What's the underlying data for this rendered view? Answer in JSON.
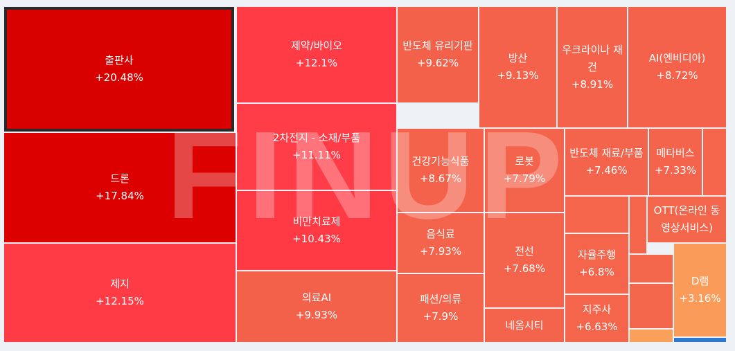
{
  "chart_data": {
    "type": "treemap",
    "watermark": "FINUP",
    "categories": [
      "출판사",
      "드론",
      "제지",
      "제약/바이오",
      "2차전지 - 소재/부품",
      "비만치료제",
      "의료AI",
      "반도체 유리기판",
      "방산",
      "우크라이나 재건",
      "AI(엔비디아)",
      "건강기능식품",
      "로봇",
      "반도체 재료/부품",
      "메타버스",
      "음식료",
      "패션/의류",
      "전선",
      "네옴시티",
      "자율주행",
      "지주사",
      "OTT(온라인 동영상서비스)",
      "D램"
    ],
    "values": [
      20.48,
      17.84,
      12.15,
      12.1,
      11.11,
      10.43,
      9.93,
      9.62,
      9.13,
      8.91,
      8.72,
      8.67,
      7.79,
      7.46,
      7.33,
      7.93,
      7.9,
      7.68,
      null,
      6.8,
      6.63,
      null,
      3.16
    ],
    "value_labels": [
      "+20.48%",
      "+17.84%",
      "+12.15%",
      "+12.1%",
      "+11.11%",
      "+10.43%",
      "+9.93%",
      "+9.62%",
      "+9.13%",
      "+8.91%",
      "+8.72%",
      "+8.67%",
      "+7.79%",
      "+7.46%",
      "+7.33%",
      "+7.93%",
      "+7.9%",
      "+7.68%",
      null,
      "+6.8%",
      "+6.63%",
      null,
      "+3.16%"
    ],
    "colors": [
      "#d90000",
      "#dc0000",
      "#ff3b46",
      "#ff3b46",
      "#ff3d48",
      "#ff3a45",
      "#f4614a",
      "#f4614a",
      "#f4624b",
      "#f4624b",
      "#f4624b",
      "#f4624b",
      "#f4634b",
      "#f4634b",
      "#f4634b",
      "#f4634b",
      "#f4634b",
      "#f4634b",
      "#f4634b",
      "#f4654c",
      "#f4654c",
      "#f4664c",
      "#fa9b5a"
    ]
  }
}
